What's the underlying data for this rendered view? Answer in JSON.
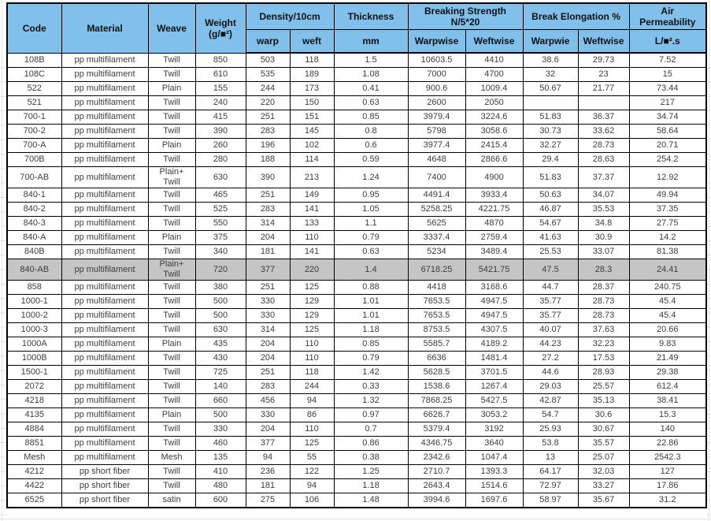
{
  "table": {
    "colors": {
      "header_bg": "#82c0ec",
      "highlight_row_bg": "#c5c5c5",
      "border": "#000000",
      "data_text": "#3c3c3c"
    },
    "header": {
      "code": "Code",
      "material": "Material",
      "weave": "Weave",
      "weight_line1": "Weight",
      "weight_line2": "(g/■²)",
      "density_group": "Density/10cm",
      "warp": "warp",
      "weft": "weft",
      "thickness": "Thickness",
      "thickness_unit": "mm",
      "breaking_group_line1": "Breaking Strength",
      "breaking_group_line2": "N/5*20",
      "breaking_warpwise": "Warpwise",
      "breaking_weftwise": "Weftwise",
      "elongation_group": "Break Elongation %",
      "elongation_warpwise": "Warpwie",
      "elongation_weftwise": "Weftwise",
      "air_group_line1": "Air",
      "air_group_line2": "Permeability",
      "air_unit": "L/■².s"
    },
    "column_keys": [
      "code",
      "material",
      "weave",
      "weight",
      "warp",
      "weft",
      "thickness",
      "bs-warpwise",
      "bs-weftwise",
      "el-warpwise",
      "el-weftwise",
      "air-permeability"
    ],
    "highlight_row_index": 14,
    "rows": [
      [
        "108B",
        "pp multifilament",
        "Twill",
        "850",
        "503",
        "118",
        "1.5",
        "10603.5",
        "4410",
        "38.6",
        "29.73",
        "7.52"
      ],
      [
        "108C",
        "pp multifilament",
        "Twill",
        "610",
        "535",
        "189",
        "1.08",
        "7000",
        "4700",
        "32",
        "23",
        "15"
      ],
      [
        "522",
        "pp multifilament",
        "Plain",
        "155",
        "244",
        "173",
        "0.41",
        "900.6",
        "1009.4",
        "50.67",
        "21.77",
        "73.44"
      ],
      [
        "521",
        "pp multifilament",
        "Twill",
        "240",
        "220",
        "150",
        "0.63",
        "2600",
        "2050",
        "",
        "",
        "217"
      ],
      [
        "700-1",
        "pp multifilament",
        "Twill",
        "415",
        "251",
        "151",
        "0.85",
        "3979.4",
        "3224.6",
        "51.83",
        "36.37",
        "34.74"
      ],
      [
        "700-2",
        "pp multifilament",
        "Twill",
        "390",
        "283",
        "145",
        "0.8",
        "5798",
        "3058.6",
        "30.73",
        "33.62",
        "58.64"
      ],
      [
        "700-A",
        "pp multifilament",
        "Plain",
        "260",
        "196",
        "102",
        "0.6",
        "3977.4",
        "2415.4",
        "32.27",
        "28.73",
        "20.71"
      ],
      [
        "700B",
        "pp multifilament",
        "Twill",
        "280",
        "188",
        "114",
        "0.59",
        "4648",
        "2866.6",
        "29.4",
        "28.63",
        "254.2"
      ],
      [
        "700-AB",
        "pp multifilament",
        "Plain+ Twill",
        "630",
        "390",
        "213",
        "1.24",
        "7400",
        "4900",
        "51.83",
        "37.37",
        "12.92"
      ],
      [
        "840-1",
        "pp multifilament",
        "Twill",
        "465",
        "251",
        "149",
        "0.95",
        "4491.4",
        "3933.4",
        "50.63",
        "34.07",
        "49.94"
      ],
      [
        "840-2",
        "pp multifilament",
        "Twill",
        "525",
        "283",
        "141",
        "1.05",
        "5258.25",
        "4221.75",
        "46.87",
        "35.53",
        "37.35"
      ],
      [
        "840-3",
        "pp multifilament",
        "Twill",
        "550",
        "314",
        "133",
        "1.1",
        "5625",
        "4870",
        "54.67",
        "34.8",
        "27.75"
      ],
      [
        "840-A",
        "pp multifilament",
        "Plain",
        "375",
        "204",
        "110",
        "0.79",
        "3337.4",
        "2759.4",
        "41.63",
        "30.9",
        "14.2"
      ],
      [
        "840B",
        "pp multifilament",
        "Twill",
        "340",
        "181",
        "141",
        "0.63",
        "5234",
        "3489.4",
        "25.53",
        "33.07",
        "81.38"
      ],
      [
        "840-AB",
        "pp multifilament",
        "Plain+ Twill",
        "720",
        "377",
        "220",
        "1.4",
        "6718.25",
        "5421.75",
        "47.5",
        "28.3",
        "24.41"
      ],
      [
        "858",
        "pp multifilament",
        "Twill",
        "380",
        "251",
        "125",
        "0.88",
        "4418",
        "3168.6",
        "44.7",
        "28.37",
        "240.75"
      ],
      [
        "1000-1",
        "pp multifilament",
        "Twill",
        "500",
        "330",
        "129",
        "1.01",
        "7653.5",
        "4947.5",
        "35.77",
        "28.73",
        "45.4"
      ],
      [
        "1000-2",
        "pp multifilament",
        "Twill",
        "500",
        "330",
        "129",
        "1.01",
        "7653.5",
        "4947.5",
        "35.77",
        "28.73",
        "45.4"
      ],
      [
        "1000-3",
        "pp multifilament",
        "Twill",
        "630",
        "314",
        "125",
        "1.18",
        "8753.5",
        "4307.5",
        "40.07",
        "37.63",
        "20.66"
      ],
      [
        "1000A",
        "pp multifilament",
        "Plain",
        "435",
        "204",
        "110",
        "0.85",
        "5585.7",
        "4189.2",
        "44.23",
        "32.23",
        "9.83"
      ],
      [
        "1000B",
        "pp multifilament",
        "Twill",
        "430",
        "204",
        "110",
        "0.79",
        "6636",
        "1481.4",
        "27.2",
        "17.53",
        "21.49"
      ],
      [
        "1500-1",
        "pp multifilament",
        "Twill",
        "725",
        "251",
        "118",
        "1.42",
        "5628.5",
        "3701.5",
        "44.6",
        "28.93",
        "29.38"
      ],
      [
        "2072",
        "pp multifilament",
        "Twill",
        "140",
        "283",
        "244",
        "0.33",
        "1538.6",
        "1267.4",
        "29.03",
        "25.57",
        "612.4"
      ],
      [
        "4218",
        "pp multifilament",
        "Twill",
        "660",
        "456",
        "94",
        "1.32",
        "7868.25",
        "5427.5",
        "42.87",
        "35.13",
        "38.41"
      ],
      [
        "4135",
        "pp multifilament",
        "Plain",
        "500",
        "330",
        "86",
        "0.97",
        "6626.7",
        "3053.2",
        "54.7",
        "30.6",
        "15.3"
      ],
      [
        "4884",
        "pp multifilament",
        "Twill",
        "330",
        "204",
        "110",
        "0.7",
        "5379.4",
        "3192",
        "25.93",
        "30.67",
        "140"
      ],
      [
        "8851",
        "pp multifilament",
        "Twill",
        "460",
        "377",
        "125",
        "0.86",
        "4346.75",
        "3640",
        "53.8",
        "35.57",
        "22.86"
      ],
      [
        "Mesh",
        "pp multifilament",
        "Mesh",
        "135",
        "94",
        "55",
        "0.38",
        "2342.6",
        "1047.4",
        "13",
        "25.07",
        "2542.3"
      ],
      [
        "4212",
        "pp short fiber",
        "Twill",
        "410",
        "236",
        "122",
        "1.25",
        "2710.7",
        "1393.3",
        "64.17",
        "32.03",
        "127"
      ],
      [
        "4422",
        "pp short fiber",
        "Twill",
        "480",
        "181",
        "94",
        "1.18",
        "2643.4",
        "1514.6",
        "72.97",
        "33.27",
        "17.86"
      ],
      [
        "6525",
        "pp short fiber",
        "satin",
        "600",
        "275",
        "106",
        "1.48",
        "3994.6",
        "1697.6",
        "58.97",
        "35.67",
        "31.2"
      ]
    ]
  }
}
